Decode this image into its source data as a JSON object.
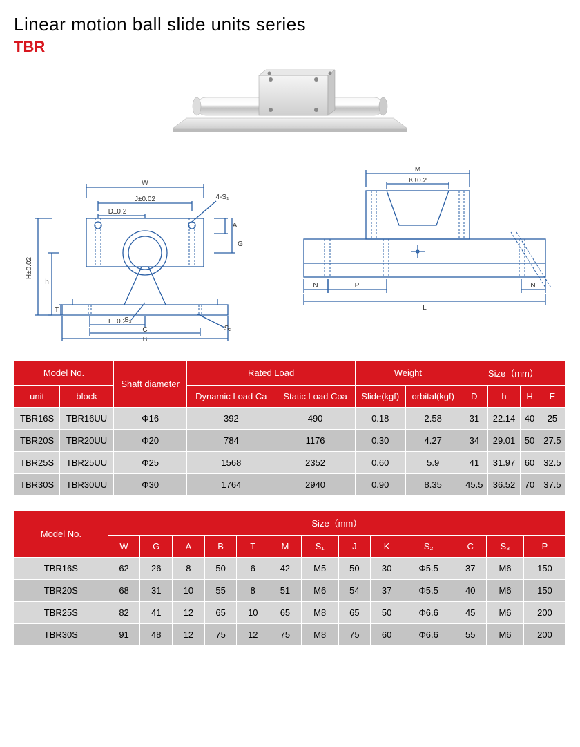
{
  "header": {
    "title": "Linear motion ball slide units series",
    "series": "TBR"
  },
  "drawing_labels": {
    "W": "W",
    "J": "J±0.02",
    "S1": "4-S₁",
    "D": "D±0.2",
    "A": "A",
    "G": "G",
    "H": "H±0.02",
    "h": "h",
    "T": "T",
    "E": "E±0.2",
    "S3": "S₃",
    "C": "C",
    "S2": "S₂",
    "B": "B",
    "M": "M",
    "K": "K±0.2",
    "N": "N",
    "P": "P",
    "L": "L"
  },
  "table1": {
    "headers": {
      "model_no": "Model No.",
      "unit": "unit",
      "block": "block",
      "shaft": "Shaft diameter",
      "rated": "Rated Load",
      "dynamic": "Dynamic Load Ca",
      "static": "Static Load Coa",
      "weight": "Weight",
      "slide": "Slide(kgf)",
      "orbital": "orbital(kgf)",
      "size": "Size（mm）",
      "D": "D",
      "h": "h",
      "H": "H",
      "E": "E"
    },
    "rows": [
      [
        "TBR16S",
        "TBR16UU",
        "Φ16",
        "392",
        "490",
        "0.18",
        "2.58",
        "31",
        "22.14",
        "40",
        "25"
      ],
      [
        "TBR20S",
        "TBR20UU",
        "Φ20",
        "784",
        "1176",
        "0.30",
        "4.27",
        "34",
        "29.01",
        "50",
        "27.5"
      ],
      [
        "TBR25S",
        "TBR25UU",
        "Φ25",
        "1568",
        "2352",
        "0.60",
        "5.9",
        "41",
        "31.97",
        "60",
        "32.5"
      ],
      [
        "TBR30S",
        "TBR30UU",
        "Φ30",
        "1764",
        "2940",
        "0.90",
        "8.35",
        "45.5",
        "36.52",
        "70",
        "37.5"
      ]
    ]
  },
  "table2": {
    "headers": {
      "model_no": "Model No.",
      "size": "Size（mm）",
      "cols": [
        "W",
        "G",
        "A",
        "B",
        "T",
        "M",
        "S₁",
        "J",
        "K",
        "S₂",
        "C",
        "S₃",
        "P"
      ]
    },
    "rows": [
      [
        "TBR16S",
        "62",
        "26",
        "8",
        "50",
        "6",
        "42",
        "M5",
        "50",
        "30",
        "Φ5.5",
        "37",
        "M6",
        "150"
      ],
      [
        "TBR20S",
        "68",
        "31",
        "10",
        "55",
        "8",
        "51",
        "M6",
        "54",
        "37",
        "Φ5.5",
        "40",
        "M6",
        "150"
      ],
      [
        "TBR25S",
        "82",
        "41",
        "12",
        "65",
        "10",
        "65",
        "M8",
        "65",
        "50",
        "Φ6.6",
        "45",
        "M6",
        "200"
      ],
      [
        "TBR30S",
        "91",
        "48",
        "12",
        "75",
        "12",
        "75",
        "M8",
        "75",
        "60",
        "Φ6.6",
        "55",
        "M6",
        "200"
      ]
    ]
  },
  "colors": {
    "header_red": "#d8171f",
    "row_light": "#d7d7d7",
    "row_dark": "#c4c4c4",
    "drawing_stroke": "#2a5fa5"
  }
}
